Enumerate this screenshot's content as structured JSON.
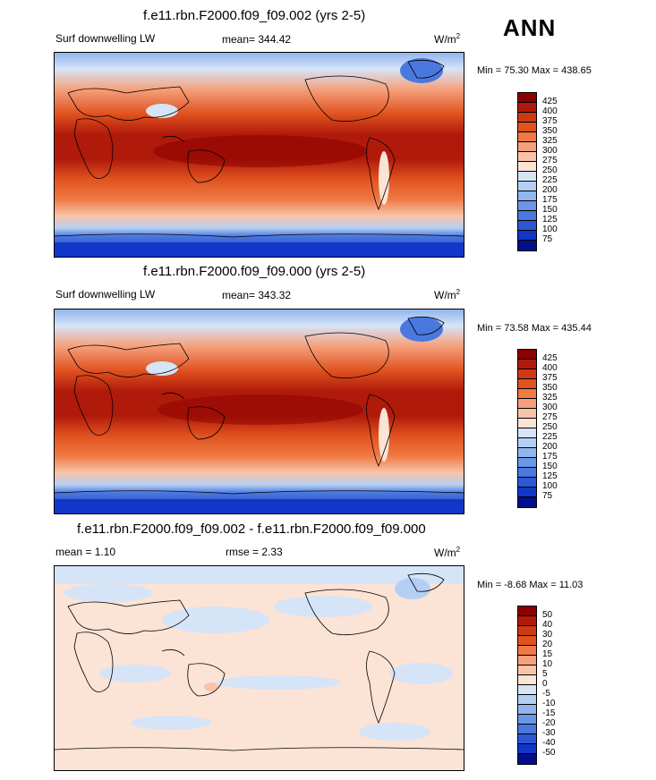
{
  "season": "ANN",
  "panels": [
    {
      "title": "f.e11.rbn.F2000.f09_f09.002 (yrs 2-5)",
      "left_label": "Surf downwelling LW",
      "center_label": "mean= 344.42",
      "units_base": "W/m",
      "units_exp": "2",
      "minmax": "Min =  75.30 Max = 438.65",
      "cbar_labels": [
        "425",
        "400",
        "375",
        "350",
        "325",
        "300",
        "275",
        "250",
        "225",
        "200",
        "175",
        "150",
        "125",
        "100",
        "75"
      ],
      "cbar_colors": [
        "#8b0000",
        "#b01a0a",
        "#cc3a14",
        "#e0521f",
        "#ef7a45",
        "#f5a07c",
        "#f8c4a8",
        "#fbe3d5",
        "#d6e4f8",
        "#b4cff3",
        "#91b6ee",
        "#6b97e6",
        "#4a78df",
        "#2c58d6",
        "#1236c8",
        "#00108c"
      ]
    },
    {
      "title": "f.e11.rbn.F2000.f09_f09.000 (yrs 2-5)",
      "left_label": "Surf downwelling LW",
      "center_label": "mean= 343.32",
      "units_base": "W/m",
      "units_exp": "2",
      "minmax": "Min =  73.58 Max = 435.44",
      "cbar_labels": [
        "425",
        "400",
        "375",
        "350",
        "325",
        "300",
        "275",
        "250",
        "225",
        "200",
        "175",
        "150",
        "125",
        "100",
        "75"
      ],
      "cbar_colors": [
        "#8b0000",
        "#b01a0a",
        "#cc3a14",
        "#e0521f",
        "#ef7a45",
        "#f5a07c",
        "#f8c4a8",
        "#fbe3d5",
        "#d6e4f8",
        "#b4cff3",
        "#91b6ee",
        "#6b97e6",
        "#4a78df",
        "#2c58d6",
        "#1236c8",
        "#00108c"
      ]
    },
    {
      "title": "f.e11.rbn.F2000.f09_f09.002 - f.e11.rbn.F2000.f09_f09.000",
      "left_label": "mean =   1.10",
      "center_label": "rmse =   2.33",
      "units_base": "W/m",
      "units_exp": "2",
      "minmax": "Min =  -8.68 Max =  11.03",
      "cbar_labels": [
        "50",
        "40",
        "30",
        "20",
        "15",
        "10",
        "5",
        "0",
        "-5",
        "-10",
        "-15",
        "-20",
        "-30",
        "-40",
        "-50"
      ],
      "cbar_colors": [
        "#8b0000",
        "#b01a0a",
        "#cc3a14",
        "#e0521f",
        "#ef7a45",
        "#f5a07c",
        "#f8c4a8",
        "#fbe3d5",
        "#d6e4f8",
        "#b4cff3",
        "#91b6ee",
        "#6b97e6",
        "#4a78df",
        "#2c58d6",
        "#1236c8",
        "#00108c"
      ]
    }
  ]
}
